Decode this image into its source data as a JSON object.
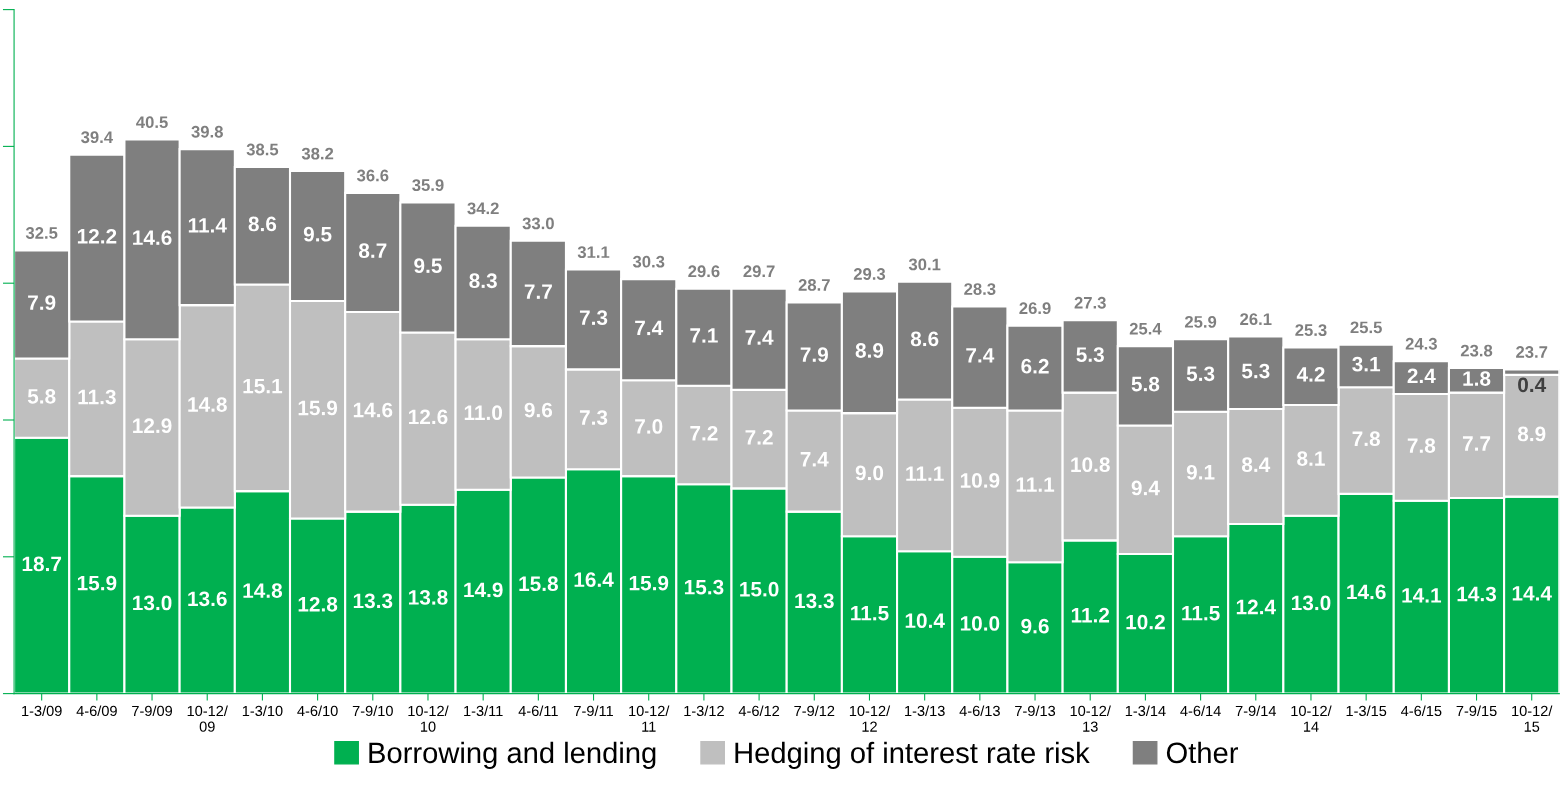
{
  "chart_data": {
    "type": "bar",
    "stacked": true,
    "legend": "bottom",
    "grid": false,
    "tick_labels": "x",
    "categories": [
      "1-3/09",
      "4-6/09",
      "7-9/09",
      "10-12/\n09",
      "1-3/10",
      "4-6/10",
      "7-9/10",
      "10-12/\n10",
      "1-3/11",
      "4-6/11",
      "7-9/11",
      "10-12/\n11",
      "1-3/12",
      "4-6/12",
      "7-9/12",
      "10-12/\n12",
      "1-3/13",
      "4-6/13",
      "7-9/13",
      "10-12/\n13",
      "1-3/14",
      "4-6/14",
      "7-9/14",
      "10-12/\n14",
      "1-3/15",
      "4-6/15",
      "7-9/15",
      "10-12/\n15"
    ],
    "ylim": [
      0,
      50
    ],
    "yticks": [
      {
        "value": 0,
        "label": null
      },
      {
        "value": 10,
        "label": null
      },
      {
        "value": 20,
        "label": null
      },
      {
        "value": 30,
        "label": null
      },
      {
        "value": 40,
        "label": null
      },
      {
        "value": 50,
        "label": null
      }
    ],
    "series": [
      {
        "name": "Borrowing and lending",
        "color": "#00b050",
        "values": [
          18.7,
          15.9,
          13.0,
          13.6,
          14.8,
          12.8,
          13.3,
          13.8,
          14.9,
          15.8,
          16.4,
          15.9,
          15.3,
          15.0,
          13.3,
          11.5,
          10.4,
          10.0,
          9.6,
          11.2,
          10.2,
          11.5,
          12.4,
          13.0,
          14.6,
          14.1,
          14.3,
          14.4
        ],
        "value_labels": [
          "18.7",
          "15.9",
          "13.0",
          "13.6",
          "14.8",
          "12.8",
          "13.3",
          "13.8",
          "14.9",
          "15.8",
          "16.4",
          "15.9",
          "15.3",
          "15.0",
          "13.3",
          "11.5",
          "10.4",
          "10.0",
          "9.6",
          "11.2",
          "10.2",
          "11.5",
          "12.4",
          "13.0",
          "14.6",
          "14.1",
          "14.3",
          "14.4"
        ]
      },
      {
        "name": "Hedging of interest rate risk",
        "color": "#bfbfbf",
        "values": [
          5.8,
          11.3,
          12.9,
          14.8,
          15.1,
          15.9,
          14.6,
          12.6,
          11.0,
          9.6,
          7.3,
          7.0,
          7.2,
          7.2,
          7.4,
          9.0,
          11.1,
          10.9,
          11.1,
          10.8,
          9.4,
          9.1,
          8.4,
          8.1,
          7.8,
          7.8,
          7.7,
          8.9
        ],
        "value_labels": [
          "5.8",
          "11.3",
          "12.9",
          "14.8",
          "15.1",
          "15.9",
          "14.6",
          "12.6",
          "11.0",
          "9.6",
          "7.3",
          "7.0",
          "7.2",
          "7.2",
          "7.4",
          "9.0",
          "11.1",
          "10.9",
          "11.1",
          "10.8",
          "9.4",
          "9.1",
          "8.4",
          "8.1",
          "7.8",
          "7.8",
          "7.7",
          "8.9"
        ]
      },
      {
        "name": "Other",
        "color": "#7f7f7f",
        "values": [
          7.9,
          12.2,
          14.6,
          11.4,
          8.6,
          9.5,
          8.7,
          9.5,
          8.3,
          7.7,
          7.3,
          7.4,
          7.1,
          7.4,
          7.9,
          8.9,
          8.6,
          7.4,
          6.2,
          5.3,
          5.8,
          5.3,
          5.3,
          4.2,
          3.1,
          2.4,
          1.8,
          0.4
        ],
        "value_labels": [
          "7.9",
          "12.2",
          "14.6",
          "11.4",
          "8.6",
          "9.5",
          "8.7",
          "9.5",
          "8.3",
          "7.7",
          "7.3",
          "7.4",
          "7.1",
          "7.4",
          "7.9",
          "8.9",
          "8.6",
          "7.4",
          "6.2",
          "5.3",
          "5.8",
          "5.3",
          "5.3",
          "4.2",
          "3.1",
          "2.4",
          "1.8",
          "0.4"
        ]
      }
    ],
    "totals": [
      "32.5",
      "39.4",
      "40.5",
      "39.8",
      "38.5",
      "38.2",
      "36.6",
      "35.9",
      "34.2",
      "33.0",
      "31.1",
      "30.3",
      "29.6",
      "29.7",
      "28.7",
      "29.3",
      "30.1",
      "28.3",
      "26.9",
      "27.3",
      "25.4",
      "25.9",
      "26.1",
      "25.3",
      "25.5",
      "24.3",
      "23.8",
      "23.7"
    ]
  }
}
